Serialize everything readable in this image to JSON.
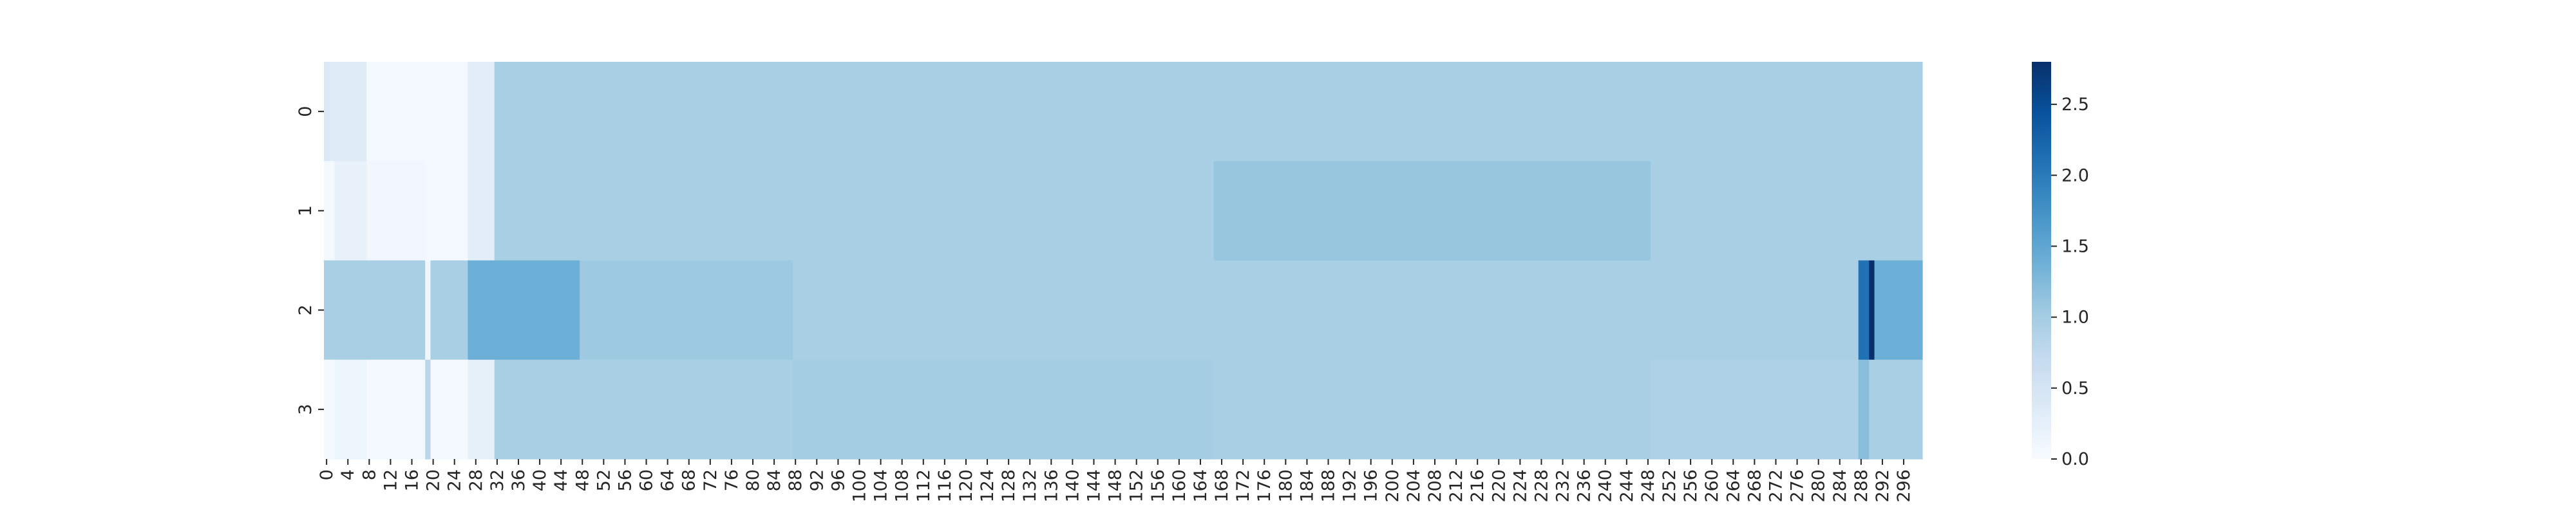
{
  "chart_data": {
    "type": "heatmap",
    "title": "",
    "xlabel": "",
    "ylabel": "",
    "rows": [
      "0",
      "1",
      "2",
      "3"
    ],
    "n_cols": 300,
    "x_tick_step": 4,
    "x_tick_labels": [
      "0",
      "4",
      "8",
      "12",
      "16",
      "20",
      "24",
      "28",
      "32",
      "36",
      "40",
      "44",
      "48",
      "52",
      "56",
      "60",
      "64",
      "68",
      "72",
      "76",
      "80",
      "84",
      "88",
      "92",
      "96",
      "100",
      "104",
      "108",
      "112",
      "116",
      "120",
      "124",
      "128",
      "132",
      "136",
      "140",
      "144",
      "148",
      "152",
      "156",
      "160",
      "164",
      "168",
      "172",
      "176",
      "180",
      "184",
      "188",
      "192",
      "196",
      "200",
      "204",
      "208",
      "212",
      "216",
      "220",
      "224",
      "228",
      "232",
      "236",
      "240",
      "244",
      "248",
      "252",
      "256",
      "260",
      "264",
      "268",
      "272",
      "276",
      "280",
      "284",
      "288",
      "292",
      "296"
    ],
    "y_tick_labels": [
      "0",
      "1",
      "2",
      "3"
    ],
    "colormap": "Blues",
    "color_range": [
      0,
      2.8
    ],
    "colorbar_ticks": [
      0.0,
      0.5,
      1.0,
      1.5,
      2.0,
      2.5
    ],
    "colorbar_tick_labels": [
      "0.0",
      "0.5",
      "1.0",
      "1.5",
      "2.0",
      "2.5"
    ],
    "segments": [
      [
        {
          "start": 0,
          "end": 1,
          "value": 0.4
        },
        {
          "start": 1,
          "end": 2,
          "value": 0.35
        },
        {
          "start": 2,
          "end": 8,
          "value": 0.35
        },
        {
          "start": 8,
          "end": 27,
          "value": 0.05
        },
        {
          "start": 27,
          "end": 32,
          "value": 0.3
        },
        {
          "start": 32,
          "end": 300,
          "value": 0.95
        }
      ],
      [
        {
          "start": 0,
          "end": 2,
          "value": 0.05
        },
        {
          "start": 2,
          "end": 8,
          "value": 0.2
        },
        {
          "start": 8,
          "end": 19,
          "value": 0.08
        },
        {
          "start": 19,
          "end": 27,
          "value": 0.05
        },
        {
          "start": 27,
          "end": 32,
          "value": 0.3
        },
        {
          "start": 32,
          "end": 167,
          "value": 0.95
        },
        {
          "start": 167,
          "end": 249,
          "value": 1.1
        },
        {
          "start": 249,
          "end": 300,
          "value": 0.95
        }
      ],
      [
        {
          "start": 0,
          "end": 19,
          "value": 0.95
        },
        {
          "start": 19,
          "end": 20,
          "value": 0.1
        },
        {
          "start": 20,
          "end": 27,
          "value": 0.95
        },
        {
          "start": 27,
          "end": 48,
          "value": 1.4
        },
        {
          "start": 48,
          "end": 88,
          "value": 1.05
        },
        {
          "start": 88,
          "end": 288,
          "value": 0.95
        },
        {
          "start": 288,
          "end": 290,
          "value": 2.1
        },
        {
          "start": 290,
          "end": 291,
          "value": 2.8
        },
        {
          "start": 291,
          "end": 300,
          "value": 1.4
        }
      ],
      [
        {
          "start": 0,
          "end": 2,
          "value": 0.05
        },
        {
          "start": 2,
          "end": 8,
          "value": 0.15
        },
        {
          "start": 8,
          "end": 19,
          "value": 0.05
        },
        {
          "start": 19,
          "end": 20,
          "value": 0.8
        },
        {
          "start": 20,
          "end": 21,
          "value": 0.05
        },
        {
          "start": 21,
          "end": 27,
          "value": 0.05
        },
        {
          "start": 27,
          "end": 32,
          "value": 0.25
        },
        {
          "start": 32,
          "end": 88,
          "value": 0.95
        },
        {
          "start": 88,
          "end": 167,
          "value": 1.0
        },
        {
          "start": 167,
          "end": 249,
          "value": 0.95
        },
        {
          "start": 249,
          "end": 288,
          "value": 0.9
        },
        {
          "start": 288,
          "end": 290,
          "value": 1.2
        },
        {
          "start": 290,
          "end": 300,
          "value": 0.95
        }
      ]
    ]
  }
}
